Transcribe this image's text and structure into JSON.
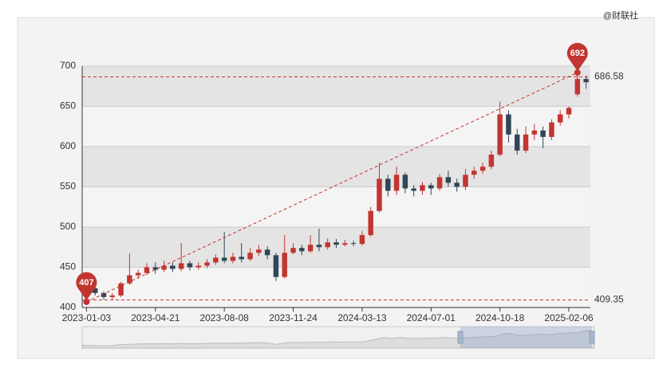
{
  "chart_data": {
    "type": "candlestick",
    "watermark": "@财联社",
    "categories": [
      "2023-01-03",
      null,
      null,
      null,
      null,
      null,
      null,
      null,
      "2023-04-21",
      null,
      null,
      null,
      null,
      null,
      null,
      null,
      "2023-08-08",
      null,
      null,
      null,
      null,
      null,
      null,
      null,
      "2023-11-24",
      null,
      null,
      null,
      null,
      null,
      null,
      null,
      "2024-03-13",
      null,
      null,
      null,
      null,
      null,
      null,
      null,
      "2024-07-01",
      null,
      null,
      null,
      null,
      null,
      null,
      null,
      "2024-10-18",
      null,
      null,
      null,
      null,
      null,
      null,
      null,
      "2025-02-06",
      null,
      null
    ],
    "values": [
      [
        420,
        424,
        407,
        428
      ],
      [
        424,
        418,
        415,
        426
      ],
      [
        418,
        413,
        410,
        420
      ],
      [
        413,
        415,
        410,
        418
      ],
      [
        415,
        430,
        413,
        432
      ],
      [
        430,
        440,
        428,
        467
      ],
      [
        440,
        443,
        436,
        447
      ],
      [
        443,
        450,
        440,
        455
      ],
      [
        450,
        447,
        442,
        456
      ],
      [
        447,
        452,
        444,
        458
      ],
      [
        452,
        448,
        444,
        456
      ],
      [
        448,
        455,
        445,
        480
      ],
      [
        455,
        450,
        446,
        458
      ],
      [
        450,
        452,
        447,
        456
      ],
      [
        452,
        456,
        449,
        460
      ],
      [
        456,
        462,
        453,
        466
      ],
      [
        462,
        458,
        455,
        494
      ],
      [
        458,
        463,
        455,
        468
      ],
      [
        463,
        460,
        456,
        480
      ],
      [
        460,
        468,
        458,
        474
      ],
      [
        468,
        472,
        464,
        478
      ],
      [
        472,
        465,
        460,
        476
      ],
      [
        465,
        438,
        433,
        468
      ],
      [
        438,
        468,
        436,
        490
      ],
      [
        468,
        474,
        466,
        480
      ],
      [
        474,
        470,
        465,
        478
      ],
      [
        470,
        478,
        468,
        490
      ],
      [
        478,
        475,
        470,
        498
      ],
      [
        475,
        481,
        472,
        486
      ],
      [
        481,
        478,
        474,
        485
      ],
      [
        478,
        480,
        476,
        484
      ],
      [
        480,
        479,
        476,
        483
      ],
      [
        479,
        490,
        477,
        495
      ],
      [
        490,
        520,
        488,
        525
      ],
      [
        520,
        560,
        518,
        580
      ],
      [
        560,
        545,
        538,
        565
      ],
      [
        545,
        565,
        540,
        575
      ],
      [
        565,
        548,
        542,
        568
      ],
      [
        548,
        545,
        538,
        552
      ],
      [
        545,
        552,
        540,
        556
      ],
      [
        552,
        548,
        540,
        555
      ],
      [
        548,
        562,
        545,
        566
      ],
      [
        562,
        555,
        550,
        570
      ],
      [
        555,
        550,
        544,
        560
      ],
      [
        550,
        565,
        546,
        572
      ],
      [
        565,
        570,
        560,
        575
      ],
      [
        570,
        575,
        566,
        580
      ],
      [
        575,
        590,
        572,
        595
      ],
      [
        590,
        640,
        588,
        656
      ],
      [
        640,
        615,
        605,
        645
      ],
      [
        615,
        595,
        590,
        622
      ],
      [
        595,
        615,
        592,
        625
      ],
      [
        615,
        620,
        608,
        628
      ],
      [
        620,
        612,
        598,
        625
      ],
      [
        612,
        630,
        608,
        634
      ],
      [
        630,
        640,
        626,
        645
      ],
      [
        640,
        648,
        635,
        650
      ],
      [
        665,
        684,
        662,
        692
      ],
      [
        684,
        680,
        672,
        688
      ]
    ],
    "up_color": "#c23531",
    "down_color": "#314656",
    "ylim": [
      400,
      700
    ],
    "yticks": [
      400,
      450,
      500,
      550,
      600,
      650,
      700
    ],
    "mark_points": [
      692,
      407
    ],
    "mark_lines": [
      686.58,
      409.35
    ]
  }
}
